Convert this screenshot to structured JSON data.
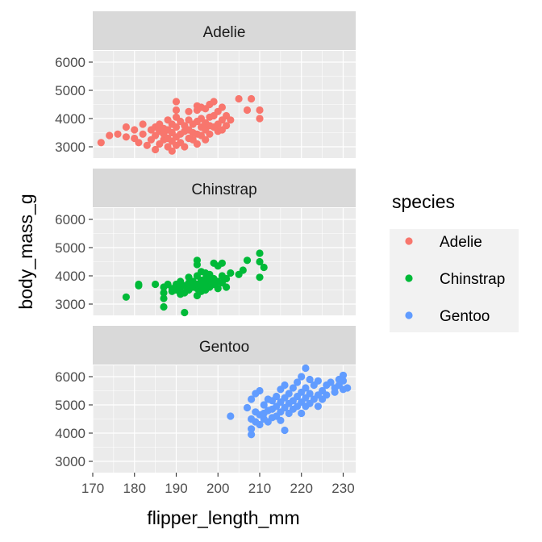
{
  "chart_data": {
    "type": "scatter",
    "facet_by": "species",
    "xlabel": "flipper_length_mm",
    "ylabel": "body_mass_g",
    "xlim": [
      170,
      233
    ],
    "ylim": [
      2600,
      6400
    ],
    "x_ticks": [
      170,
      180,
      190,
      200,
      210,
      220,
      230
    ],
    "y_ticks": [
      3000,
      4000,
      5000,
      6000
    ],
    "grid": true,
    "legend": {
      "title": "species",
      "placement": "right"
    },
    "panels": [
      {
        "name": "Adelie",
        "color": "#F8766D",
        "points": [
          [
            172,
            3150
          ],
          [
            174,
            3400
          ],
          [
            176,
            3450
          ],
          [
            178,
            3700
          ],
          [
            178,
            3350
          ],
          [
            180,
            3300
          ],
          [
            180,
            3600
          ],
          [
            181,
            3150
          ],
          [
            182,
            3450
          ],
          [
            182,
            3800
          ],
          [
            183,
            3050
          ],
          [
            184,
            3250
          ],
          [
            184,
            3600
          ],
          [
            185,
            2900
          ],
          [
            185,
            3400
          ],
          [
            185,
            3700
          ],
          [
            186,
            3100
          ],
          [
            186,
            3550
          ],
          [
            186,
            3800
          ],
          [
            187,
            3250
          ],
          [
            187,
            3450
          ],
          [
            187,
            3650
          ],
          [
            188,
            3000
          ],
          [
            188,
            3300
          ],
          [
            188,
            3600
          ],
          [
            188,
            3950
          ],
          [
            189,
            2850
          ],
          [
            189,
            3200
          ],
          [
            189,
            3500
          ],
          [
            189,
            3800
          ],
          [
            190,
            3050
          ],
          [
            190,
            3350
          ],
          [
            190,
            3700
          ],
          [
            190,
            4050
          ],
          [
            190,
            4300
          ],
          [
            190,
            4600
          ],
          [
            191,
            3150
          ],
          [
            191,
            3450
          ],
          [
            191,
            3900
          ],
          [
            192,
            3000
          ],
          [
            192,
            3550
          ],
          [
            192,
            3750
          ],
          [
            193,
            3300
          ],
          [
            193,
            3600
          ],
          [
            193,
            3950
          ],
          [
            193,
            4250
          ],
          [
            194,
            3250
          ],
          [
            194,
            3500
          ],
          [
            194,
            3800
          ],
          [
            195,
            3100
          ],
          [
            195,
            3450
          ],
          [
            195,
            3900
          ],
          [
            195,
            4300
          ],
          [
            195,
            4450
          ],
          [
            196,
            3400
          ],
          [
            196,
            3700
          ],
          [
            196,
            4000
          ],
          [
            196,
            4400
          ],
          [
            197,
            3250
          ],
          [
            197,
            3600
          ],
          [
            197,
            3850
          ],
          [
            197,
            4350
          ],
          [
            198,
            3450
          ],
          [
            198,
            3750
          ],
          [
            198,
            4050
          ],
          [
            198,
            4500
          ],
          [
            199,
            3700
          ],
          [
            199,
            4100
          ],
          [
            199,
            4600
          ],
          [
            200,
            3550
          ],
          [
            200,
            3800
          ],
          [
            200,
            4250
          ],
          [
            201,
            3600
          ],
          [
            201,
            3950
          ],
          [
            201,
            4400
          ],
          [
            202,
            3750
          ],
          [
            202,
            4100
          ],
          [
            203,
            3950
          ],
          [
            205,
            4700
          ],
          [
            207,
            4300
          ],
          [
            208,
            4700
          ],
          [
            210,
            4300
          ],
          [
            210,
            4000
          ]
        ]
      },
      {
        "name": "Chinstrap",
        "color": "#00BA38",
        "points": [
          [
            178,
            3250
          ],
          [
            181,
            3650
          ],
          [
            181,
            3700
          ],
          [
            185,
            3700
          ],
          [
            187,
            2900
          ],
          [
            187,
            3200
          ],
          [
            187,
            3400
          ],
          [
            187,
            3600
          ],
          [
            188,
            3700
          ],
          [
            189,
            3450
          ],
          [
            189,
            3550
          ],
          [
            190,
            3500
          ],
          [
            190,
            3700
          ],
          [
            191,
            3350
          ],
          [
            191,
            3600
          ],
          [
            191,
            3800
          ],
          [
            192,
            2700
          ],
          [
            192,
            3400
          ],
          [
            192,
            3650
          ],
          [
            193,
            3500
          ],
          [
            193,
            3750
          ],
          [
            193,
            3950
          ],
          [
            194,
            3600
          ],
          [
            194,
            3800
          ],
          [
            195,
            3300
          ],
          [
            195,
            3550
          ],
          [
            195,
            3700
          ],
          [
            195,
            4000
          ],
          [
            195,
            4400
          ],
          [
            195,
            4550
          ],
          [
            196,
            3450
          ],
          [
            196,
            3650
          ],
          [
            196,
            3850
          ],
          [
            196,
            4150
          ],
          [
            197,
            3500
          ],
          [
            197,
            3750
          ],
          [
            197,
            3900
          ],
          [
            197,
            4100
          ],
          [
            198,
            3600
          ],
          [
            198,
            3850
          ],
          [
            198,
            4050
          ],
          [
            199,
            3700
          ],
          [
            199,
            3900
          ],
          [
            199,
            4450
          ],
          [
            200,
            3550
          ],
          [
            200,
            3800
          ],
          [
            200,
            4350
          ],
          [
            201,
            3750
          ],
          [
            201,
            4000
          ],
          [
            201,
            4450
          ],
          [
            202,
            3600
          ],
          [
            202,
            3900
          ],
          [
            203,
            4100
          ],
          [
            205,
            4050
          ],
          [
            206,
            4200
          ],
          [
            207,
            4550
          ],
          [
            210,
            4800
          ],
          [
            210,
            4500
          ],
          [
            210,
            3950
          ],
          [
            211,
            4300
          ]
        ]
      },
      {
        "name": "Gentoo",
        "color": "#619CFF",
        "points": [
          [
            203,
            4600
          ],
          [
            207,
            4900
          ],
          [
            208,
            5200
          ],
          [
            208,
            4500
          ],
          [
            208,
            4150
          ],
          [
            208,
            3950
          ],
          [
            209,
            5400
          ],
          [
            209,
            4750
          ],
          [
            209,
            4400
          ],
          [
            210,
            5500
          ],
          [
            210,
            4650
          ],
          [
            210,
            4300
          ],
          [
            211,
            5000
          ],
          [
            211,
            4700
          ],
          [
            211,
            4500
          ],
          [
            212,
            5200
          ],
          [
            212,
            4800
          ],
          [
            212,
            4400
          ],
          [
            213,
            5150
          ],
          [
            213,
            4850
          ],
          [
            213,
            4550
          ],
          [
            214,
            5300
          ],
          [
            214,
            4950
          ],
          [
            214,
            4600
          ],
          [
            215,
            5550
          ],
          [
            215,
            5100
          ],
          [
            215,
            4750
          ],
          [
            215,
            4450
          ],
          [
            216,
            5700
          ],
          [
            216,
            5250
          ],
          [
            216,
            4900
          ],
          [
            216,
            4100
          ],
          [
            217,
            5400
          ],
          [
            217,
            5050
          ],
          [
            217,
            4700
          ],
          [
            218,
            5600
          ],
          [
            218,
            5150
          ],
          [
            218,
            4850
          ],
          [
            219,
            5800
          ],
          [
            219,
            5300
          ],
          [
            219,
            4950
          ],
          [
            220,
            6000
          ],
          [
            220,
            5450
          ],
          [
            220,
            5100
          ],
          [
            220,
            4700
          ],
          [
            221,
            6300
          ],
          [
            221,
            5600
          ],
          [
            221,
            5250
          ],
          [
            221,
            4950
          ],
          [
            222,
            5900
          ],
          [
            222,
            5400
          ],
          [
            222,
            5050
          ],
          [
            223,
            5700
          ],
          [
            223,
            5200
          ],
          [
            224,
            5850
          ],
          [
            224,
            5350
          ],
          [
            224,
            4950
          ],
          [
            225,
            5500
          ],
          [
            225,
            5200
          ],
          [
            226,
            5700
          ],
          [
            226,
            5350
          ],
          [
            227,
            5800
          ],
          [
            228,
            5600
          ],
          [
            228,
            5450
          ],
          [
            229,
            5900
          ],
          [
            229,
            5700
          ],
          [
            230,
            6050
          ],
          [
            230,
            5850
          ],
          [
            230,
            5550
          ],
          [
            231,
            5600
          ]
        ]
      }
    ]
  }
}
